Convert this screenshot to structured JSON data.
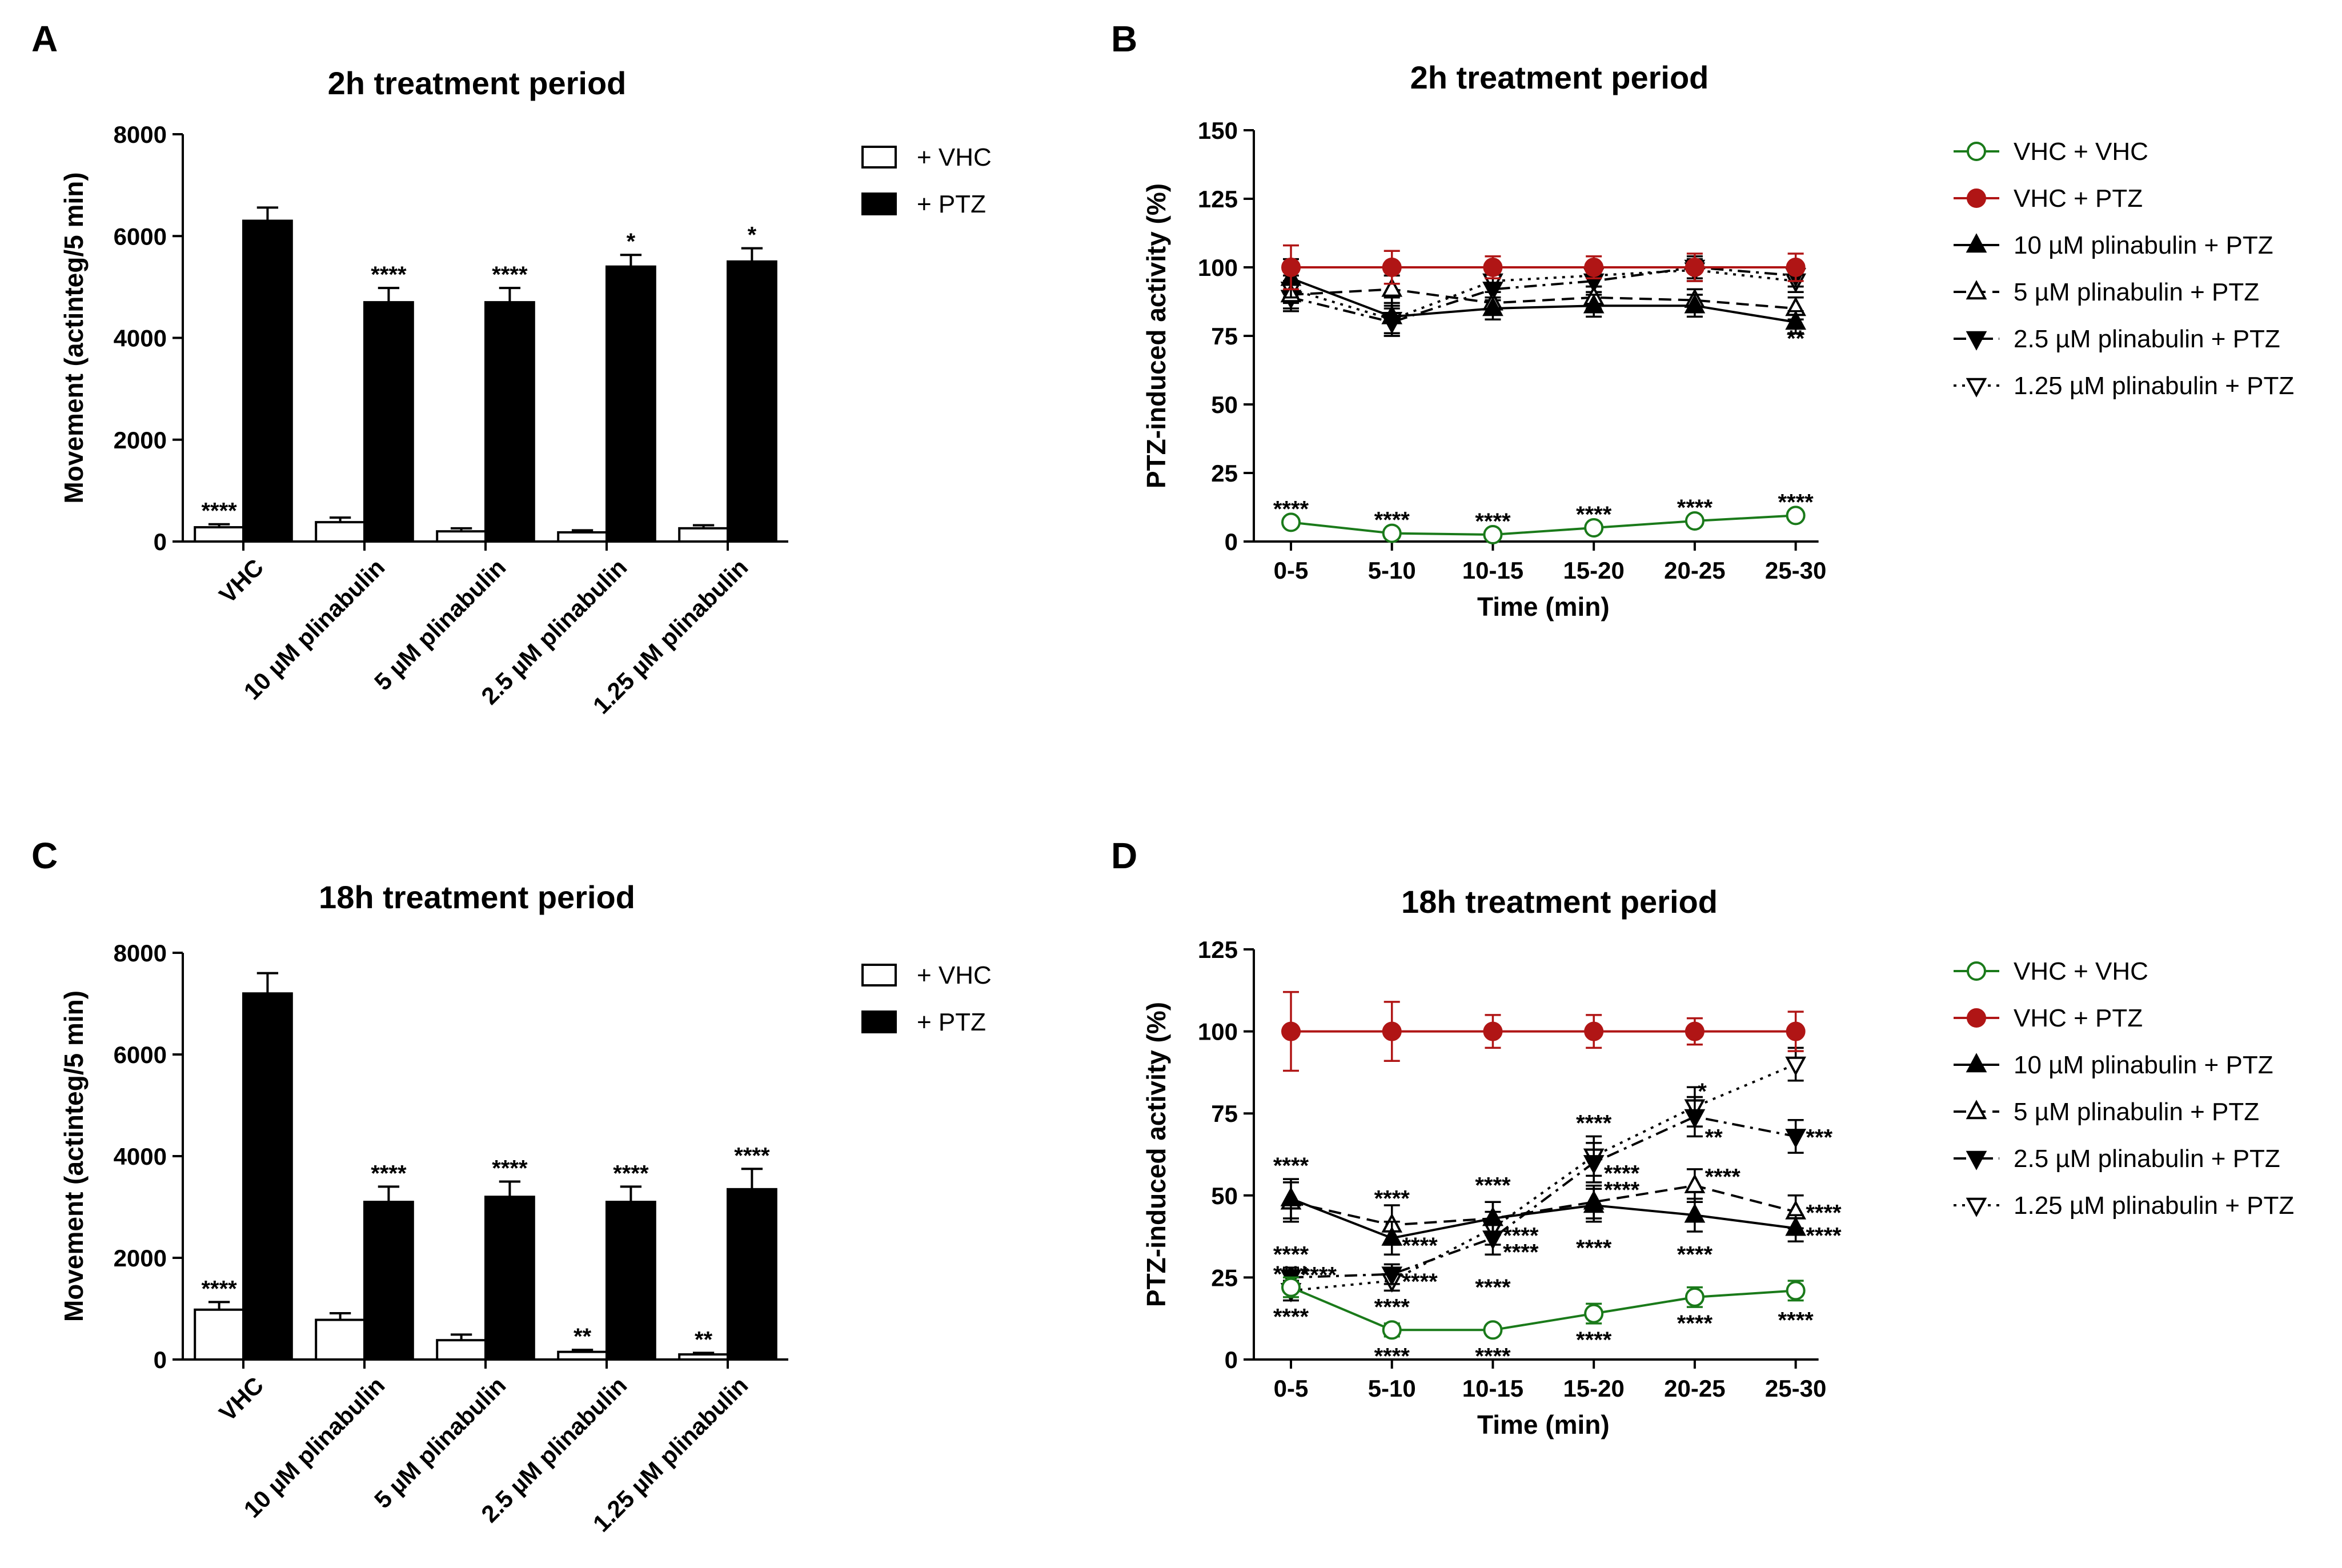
{
  "chart_data": [
    {
      "panel": "A",
      "type": "bar",
      "title": "2h treatment period",
      "ylabel": "Movement (actinteg/5 min)",
      "ylim": [
        0,
        8000
      ],
      "yticks": [
        0,
        2000,
        4000,
        6000,
        8000
      ],
      "categories": [
        "VHC",
        "10 µM plinabulin",
        "5 µM plinabulin",
        "2.5 µM plinabulin",
        "1.25 µM plinabulin"
      ],
      "series": [
        {
          "name": "+ VHC",
          "fill": "#ffffff",
          "values": [
            280,
            380,
            200,
            180,
            260
          ],
          "errors": [
            60,
            90,
            60,
            40,
            60
          ],
          "sig": [
            "****",
            "",
            "",
            "",
            ""
          ]
        },
        {
          "name": "+ PTZ",
          "fill": "#000000",
          "values": [
            6300,
            4700,
            4700,
            5400,
            5500
          ],
          "errors": [
            260,
            280,
            280,
            230,
            260
          ],
          "sig": [
            "",
            "****",
            "****",
            "*",
            "*"
          ]
        }
      ]
    },
    {
      "panel": "B",
      "type": "line",
      "title": "2h treatment period",
      "xlabel": "Time (min)",
      "ylabel": "PTZ-induced activity (%)",
      "ylim": [
        0,
        150
      ],
      "yticks": [
        0,
        25,
        50,
        75,
        100,
        125,
        150
      ],
      "categories": [
        "0-5",
        "5-10",
        "10-15",
        "15-20",
        "20-25",
        "25-30"
      ],
      "series": [
        {
          "name": "VHC + VHC",
          "color": "#1a7a1a",
          "dash": "solid",
          "marker": "circle-open",
          "values": [
            7,
            3,
            2.5,
            5,
            7.5,
            9.5
          ],
          "errors": [
            1,
            1,
            1,
            1,
            1,
            1
          ]
        },
        {
          "name": "VHC + PTZ",
          "color": "#b01515",
          "dash": "solid",
          "marker": "circle-filled",
          "values": [
            100,
            100,
            100,
            100,
            100,
            100
          ],
          "errors": [
            8,
            6,
            4,
            4,
            5,
            5
          ]
        },
        {
          "name": "10 µM plinabulin + PTZ",
          "color": "#000000",
          "dash": "solid",
          "marker": "triangle-up-filled",
          "values": [
            96,
            82,
            85,
            86,
            86,
            80
          ],
          "errors": [
            7,
            7,
            4,
            4,
            4,
            4
          ]
        },
        {
          "name": "5 µM plinabulin + PTZ",
          "color": "#000000",
          "dash": "dashed",
          "marker": "triangle-up-open",
          "values": [
            90,
            92,
            87,
            89,
            88,
            85
          ],
          "errors": [
            5,
            5,
            4,
            4,
            4,
            4
          ]
        },
        {
          "name": "2.5 µM plinabulin + PTZ",
          "color": "#000000",
          "dash": "dashdot",
          "marker": "triangle-down-filled",
          "values": [
            89,
            80,
            92,
            95,
            100,
            97
          ],
          "errors": [
            5,
            5,
            4,
            4,
            4,
            4
          ]
        },
        {
          "name": "1.25 µM plinabulin + PTZ",
          "color": "#000000",
          "dash": "dotted",
          "marker": "triangle-down-open",
          "values": [
            92,
            81,
            95,
            97,
            99,
            95
          ],
          "errors": [
            5,
            5,
            4,
            4,
            4,
            4
          ]
        }
      ],
      "annotations": [
        {
          "text": "****",
          "x": 0,
          "y": 7,
          "pos": "above"
        },
        {
          "text": "****",
          "x": 1,
          "y": 3,
          "pos": "above"
        },
        {
          "text": "****",
          "x": 2,
          "y": 2.5,
          "pos": "above"
        },
        {
          "text": "****",
          "x": 3,
          "y": 5,
          "pos": "above"
        },
        {
          "text": "****",
          "x": 4,
          "y": 7.5,
          "pos": "above"
        },
        {
          "text": "****",
          "x": 5,
          "y": 9.5,
          "pos": "above"
        },
        {
          "text": "**",
          "x": 5,
          "y": 80,
          "pos": "below"
        }
      ]
    },
    {
      "panel": "C",
      "type": "bar",
      "title": "18h treatment period",
      "ylabel": "Movement (actinteg/5 min)",
      "ylim": [
        0,
        8000
      ],
      "yticks": [
        0,
        2000,
        4000,
        6000,
        8000
      ],
      "categories": [
        "VHC",
        "10 µM plinabulin",
        "5 µM plinabulin",
        "2.5 µM plinabulin",
        "1.25 µM plinabulin"
      ],
      "series": [
        {
          "name": "+ VHC",
          "fill": "#ffffff",
          "values": [
            980,
            780,
            380,
            150,
            100
          ],
          "errors": [
            150,
            130,
            110,
            40,
            30
          ],
          "sig": [
            "****",
            "",
            "",
            "**",
            "**"
          ]
        },
        {
          "name": "+ PTZ",
          "fill": "#000000",
          "values": [
            7200,
            3100,
            3200,
            3100,
            3350
          ],
          "errors": [
            400,
            300,
            300,
            300,
            400
          ],
          "sig": [
            "",
            "****",
            "****",
            "****",
            "****"
          ]
        }
      ]
    },
    {
      "panel": "D",
      "type": "line",
      "title": "18h treatment period",
      "xlabel": "Time (min)",
      "ylabel": "PTZ-induced activity (%)",
      "ylim": [
        0,
        125
      ],
      "yticks": [
        0,
        25,
        50,
        75,
        100,
        125
      ],
      "categories": [
        "0-5",
        "5-10",
        "10-15",
        "15-20",
        "20-25",
        "25-30"
      ],
      "series": [
        {
          "name": "VHC + VHC",
          "color": "#1a7a1a",
          "dash": "solid",
          "marker": "circle-open",
          "values": [
            22,
            9,
            9,
            14,
            19,
            21
          ],
          "errors": [
            3,
            2,
            1,
            3,
            3,
            3
          ]
        },
        {
          "name": "VHC + PTZ",
          "color": "#b01515",
          "dash": "solid",
          "marker": "circle-filled",
          "values": [
            100,
            100,
            100,
            100,
            100,
            100
          ],
          "errors": [
            12,
            9,
            5,
            5,
            4,
            6
          ]
        },
        {
          "name": "10 µM plinabulin + PTZ",
          "color": "#000000",
          "dash": "solid",
          "marker": "triangle-up-filled",
          "values": [
            49,
            37,
            43,
            47,
            44,
            40
          ],
          "errors": [
            6,
            5,
            5,
            5,
            5,
            4
          ]
        },
        {
          "name": "5 µM plinabulin + PTZ",
          "color": "#000000",
          "dash": "dashed",
          "marker": "triangle-up-open",
          "values": [
            48,
            41,
            43,
            48,
            53,
            45
          ],
          "errors": [
            6,
            6,
            5,
            5,
            5,
            5
          ]
        },
        {
          "name": "2.5 µM plinabulin + PTZ",
          "color": "#000000",
          "dash": "dashdot",
          "marker": "triangle-down-filled",
          "values": [
            25,
            26,
            37,
            60,
            74,
            68
          ],
          "errors": [
            3,
            3,
            5,
            6,
            6,
            5
          ]
        },
        {
          "name": "1.25 µM plinabulin + PTZ",
          "color": "#000000",
          "dash": "dotted",
          "marker": "triangle-down-open",
          "values": [
            21,
            24,
            40,
            62,
            77,
            90
          ],
          "errors": [
            3,
            3,
            5,
            6,
            6,
            5
          ]
        }
      ],
      "annotations": [
        {
          "text": "****",
          "x": 0,
          "y": 55,
          "pos": "above"
        },
        {
          "text": "****",
          "x": 0,
          "y": 37,
          "pos": "below"
        },
        {
          "text": "****",
          "x": 0,
          "y": 31,
          "pos": "below"
        },
        {
          "text": "****",
          "x": 0.27,
          "y": 26,
          "pos": "mid"
        },
        {
          "text": "****",
          "x": 0,
          "y": 18,
          "pos": "below"
        },
        {
          "text": "****",
          "x": 1,
          "y": 45,
          "pos": "above"
        },
        {
          "text": "****",
          "x": 1.27,
          "y": 35,
          "pos": "mid"
        },
        {
          "text": "****",
          "x": 1,
          "y": 21,
          "pos": "below"
        },
        {
          "text": "****",
          "x": 1.27,
          "y": 24,
          "pos": "mid"
        },
        {
          "text": "****",
          "x": 1,
          "y": 6,
          "pos": "below"
        },
        {
          "text": "****",
          "x": 2,
          "y": 49,
          "pos": "above"
        },
        {
          "text": "****",
          "x": 2.27,
          "y": 38,
          "pos": "mid"
        },
        {
          "text": "****",
          "x": 2.27,
          "y": 33,
          "pos": "mid"
        },
        {
          "text": "****",
          "x": 2,
          "y": 27,
          "pos": "below"
        },
        {
          "text": "****",
          "x": 2,
          "y": 6,
          "pos": "below"
        },
        {
          "text": "****",
          "x": 3,
          "y": 68,
          "pos": "above"
        },
        {
          "text": "****",
          "x": 3.27,
          "y": 57,
          "pos": "mid"
        },
        {
          "text": "****",
          "x": 3.27,
          "y": 52,
          "pos": "mid"
        },
        {
          "text": "****",
          "x": 3,
          "y": 39,
          "pos": "below"
        },
        {
          "text": "****",
          "x": 3,
          "y": 11,
          "pos": "below"
        },
        {
          "text": "*",
          "x": 4.2,
          "y": 82,
          "pos": "mid"
        },
        {
          "text": "**",
          "x": 4.27,
          "y": 68,
          "pos": "mid"
        },
        {
          "text": "****",
          "x": 4.27,
          "y": 56,
          "pos": "mid"
        },
        {
          "text": "****",
          "x": 4,
          "y": 37,
          "pos": "below"
        },
        {
          "text": "****",
          "x": 4,
          "y": 16,
          "pos": "below"
        },
        {
          "text": "***",
          "x": 5.27,
          "y": 68,
          "pos": "mid"
        },
        {
          "text": "****",
          "x": 5.27,
          "y": 45,
          "pos": "mid"
        },
        {
          "text": "****",
          "x": 5.27,
          "y": 38,
          "pos": "mid"
        },
        {
          "text": "****",
          "x": 5,
          "y": 17,
          "pos": "below"
        }
      ]
    }
  ]
}
